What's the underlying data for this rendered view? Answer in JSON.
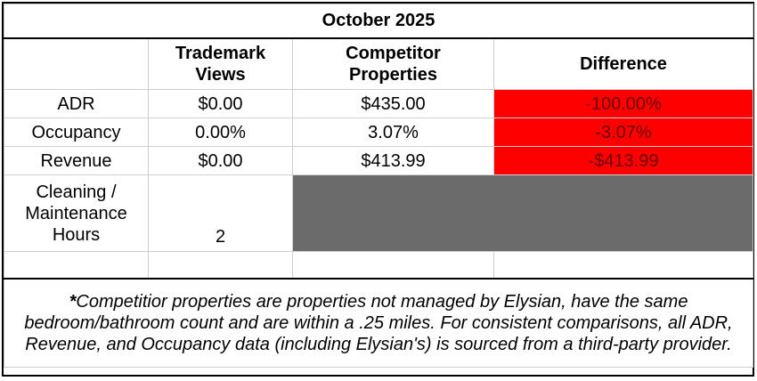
{
  "title": "October 2025",
  "columns": {
    "trademark": [
      "Trademark",
      "Views"
    ],
    "competitor": [
      "Competitor",
      "Properties"
    ],
    "difference": "Difference"
  },
  "rows": [
    {
      "label": "ADR",
      "trademark": "$0.00",
      "competitor": "$435.00",
      "difference": "-100.00%"
    },
    {
      "label": "Occupancy",
      "trademark": "0.00%",
      "competitor": "3.07%",
      "difference": "-3.07%"
    },
    {
      "label": "Revenue",
      "trademark": "$0.00",
      "competitor": "$413.99",
      "difference": "-$413.99"
    }
  ],
  "cleaning": {
    "label_lines": [
      "Cleaning /",
      "Maintenance",
      "Hours"
    ],
    "value": "2"
  },
  "note": {
    "star": "*",
    "text": "Competitior properties are properties not managed by Elysian, have the same bedroom/bathroom count and are within a .25 miles. For consistent comparisons, all ADR, Revenue, and Occupancy data (including Elysian's) is sourced from a third-party provider."
  },
  "colors": {
    "negative_fill": "#ff0000",
    "na_fill": "#6b6b6b"
  }
}
